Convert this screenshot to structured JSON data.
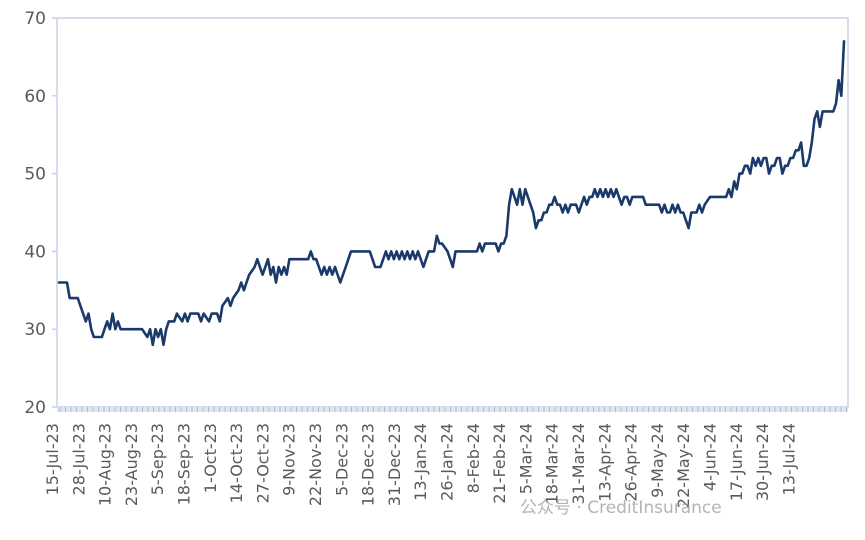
{
  "watermark": "公众号 · CreditInsurance",
  "chart_data": {
    "type": "line",
    "title": "",
    "xlabel": "",
    "ylabel": "",
    "ylim": [
      20,
      70
    ],
    "yticks": [
      "20",
      "30",
      "40",
      "50",
      "60",
      "70"
    ],
    "grid": false,
    "line_color": "#1b3a6b",
    "axis_color": "#c9d3e6",
    "x_tick_labels": [
      "15-Jul-23",
      "28-Jul-23",
      "10-Aug-23",
      "23-Aug-23",
      "5-Sep-23",
      "18-Sep-23",
      "1-Oct-23",
      "14-Oct-23",
      "27-Oct-23",
      "9-Nov-23",
      "22-Nov-23",
      "5-Dec-23",
      "18-Dec-23",
      "31-Dec-23",
      "13-Jan-24",
      "26-Jan-24",
      "8-Feb-24",
      "21-Feb-24",
      "5-Mar-24",
      "18-Mar-24",
      "31-Mar-24",
      "13-Apr-24",
      "26-Apr-24",
      "9-May-24",
      "22-May-24",
      "4-Jun-24",
      "17-Jun-24",
      "30-Jun-24",
      "13-Jul-24"
    ],
    "series": [
      {
        "values": [
          [
            "2023-07-15",
            36
          ],
          [
            "2023-07-18",
            36
          ],
          [
            "2023-07-19",
            34
          ],
          [
            "2023-07-22",
            34
          ],
          [
            "2023-07-23",
            33
          ],
          [
            "2023-07-24",
            32
          ],
          [
            "2023-07-25",
            31
          ],
          [
            "2023-07-26",
            32
          ],
          [
            "2023-07-27",
            30
          ],
          [
            "2023-07-28",
            29
          ],
          [
            "2023-07-31",
            29
          ],
          [
            "2023-08-01",
            30
          ],
          [
            "2023-08-02",
            31
          ],
          [
            "2023-08-03",
            30
          ],
          [
            "2023-08-04",
            32
          ],
          [
            "2023-08-05",
            30
          ],
          [
            "2023-08-06",
            31
          ],
          [
            "2023-08-07",
            30
          ],
          [
            "2023-08-10",
            30
          ],
          [
            "2023-08-15",
            30
          ],
          [
            "2023-08-17",
            29
          ],
          [
            "2023-08-18",
            30
          ],
          [
            "2023-08-19",
            28
          ],
          [
            "2023-08-20",
            30
          ],
          [
            "2023-08-21",
            29
          ],
          [
            "2023-08-22",
            30
          ],
          [
            "2023-08-23",
            28
          ],
          [
            "2023-08-24",
            30
          ],
          [
            "2023-08-25",
            31
          ],
          [
            "2023-08-27",
            31
          ],
          [
            "2023-08-28",
            32
          ],
          [
            "2023-08-30",
            31
          ],
          [
            "2023-08-31",
            32
          ],
          [
            "2023-09-01",
            31
          ],
          [
            "2023-09-02",
            32
          ],
          [
            "2023-09-05",
            32
          ],
          [
            "2023-09-06",
            31
          ],
          [
            "2023-09-07",
            32
          ],
          [
            "2023-09-09",
            31
          ],
          [
            "2023-09-10",
            32
          ],
          [
            "2023-09-12",
            32
          ],
          [
            "2023-09-13",
            31
          ],
          [
            "2023-09-14",
            33
          ],
          [
            "2023-09-16",
            34
          ],
          [
            "2023-09-17",
            33
          ],
          [
            "2023-09-18",
            34
          ],
          [
            "2023-09-20",
            35
          ],
          [
            "2023-09-21",
            36
          ],
          [
            "2023-09-22",
            35
          ],
          [
            "2023-09-23",
            36
          ],
          [
            "2023-09-24",
            37
          ],
          [
            "2023-09-26",
            38
          ],
          [
            "2023-09-27",
            39
          ],
          [
            "2023-09-28",
            38
          ],
          [
            "2023-09-29",
            37
          ],
          [
            "2023-09-30",
            38
          ],
          [
            "2023-10-01",
            39
          ],
          [
            "2023-10-02",
            37
          ],
          [
            "2023-10-03",
            38
          ],
          [
            "2023-10-04",
            36
          ],
          [
            "2023-10-05",
            38
          ],
          [
            "2023-10-06",
            37
          ],
          [
            "2023-10-07",
            38
          ],
          [
            "2023-10-08",
            37
          ],
          [
            "2023-10-09",
            39
          ],
          [
            "2023-10-11",
            39
          ],
          [
            "2023-10-13",
            39
          ],
          [
            "2023-10-14",
            39
          ],
          [
            "2023-10-16",
            39
          ],
          [
            "2023-10-17",
            40
          ],
          [
            "2023-10-18",
            39
          ],
          [
            "2023-10-19",
            39
          ],
          [
            "2023-10-20",
            38
          ],
          [
            "2023-10-21",
            37
          ],
          [
            "2023-10-22",
            38
          ],
          [
            "2023-10-23",
            37
          ],
          [
            "2023-10-24",
            38
          ],
          [
            "2023-10-25",
            37
          ],
          [
            "2023-10-26",
            38
          ],
          [
            "2023-10-27",
            37
          ],
          [
            "2023-10-28",
            36
          ],
          [
            "2023-10-29",
            37
          ],
          [
            "2023-10-30",
            38
          ],
          [
            "2023-11-01",
            40
          ],
          [
            "2023-11-03",
            40
          ],
          [
            "2023-11-05",
            40
          ],
          [
            "2023-11-07",
            40
          ],
          [
            "2023-11-08",
            40
          ],
          [
            "2023-11-09",
            39
          ],
          [
            "2023-11-10",
            38
          ],
          [
            "2023-11-12",
            38
          ],
          [
            "2023-11-13",
            39
          ],
          [
            "2023-11-14",
            40
          ],
          [
            "2023-11-15",
            39
          ],
          [
            "2023-11-16",
            40
          ],
          [
            "2023-11-17",
            39
          ],
          [
            "2023-11-18",
            40
          ],
          [
            "2023-11-19",
            39
          ],
          [
            "2023-11-20",
            40
          ],
          [
            "2023-11-21",
            39
          ],
          [
            "2023-11-22",
            40
          ],
          [
            "2023-11-23",
            39
          ],
          [
            "2023-11-24",
            40
          ],
          [
            "2023-11-25",
            39
          ],
          [
            "2023-11-26",
            40
          ],
          [
            "2023-11-27",
            39
          ],
          [
            "2023-11-28",
            38
          ],
          [
            "2023-11-29",
            39
          ],
          [
            "2023-11-30",
            40
          ],
          [
            "2023-12-02",
            40
          ],
          [
            "2023-12-03",
            42
          ],
          [
            "2023-12-04",
            41
          ],
          [
            "2023-12-05",
            41
          ],
          [
            "2023-12-07",
            40
          ],
          [
            "2023-12-08",
            39
          ],
          [
            "2023-12-09",
            38
          ],
          [
            "2023-12-10",
            40
          ],
          [
            "2023-12-12",
            40
          ],
          [
            "2023-12-14",
            40
          ],
          [
            "2023-12-16",
            40
          ],
          [
            "2023-12-18",
            40
          ],
          [
            "2023-12-19",
            41
          ],
          [
            "2023-12-20",
            40
          ],
          [
            "2023-12-21",
            41
          ],
          [
            "2023-12-23",
            41
          ],
          [
            "2023-12-25",
            41
          ],
          [
            "2023-12-26",
            40
          ],
          [
            "2023-12-27",
            41
          ],
          [
            "2023-12-28",
            41
          ],
          [
            "2023-12-29",
            42
          ],
          [
            "2023-12-30",
            46
          ],
          [
            "2023-12-31",
            48
          ],
          [
            "2024-01-01",
            47
          ],
          [
            "2024-01-02",
            46
          ],
          [
            "2024-01-03",
            48
          ],
          [
            "2024-01-04",
            46
          ],
          [
            "2024-01-05",
            48
          ],
          [
            "2024-01-06",
            47
          ],
          [
            "2024-01-07",
            46
          ],
          [
            "2024-01-08",
            45
          ],
          [
            "2024-01-09",
            43
          ],
          [
            "2024-01-10",
            44
          ],
          [
            "2024-01-11",
            44
          ],
          [
            "2024-01-12",
            45
          ],
          [
            "2024-01-13",
            45
          ],
          [
            "2024-01-14",
            46
          ],
          [
            "2024-01-15",
            46
          ],
          [
            "2024-01-16",
            47
          ],
          [
            "2024-01-17",
            46
          ],
          [
            "2024-01-18",
            46
          ],
          [
            "2024-01-19",
            45
          ],
          [
            "2024-01-20",
            46
          ],
          [
            "2024-01-21",
            45
          ],
          [
            "2024-01-22",
            46
          ],
          [
            "2024-01-24",
            46
          ],
          [
            "2024-01-25",
            45
          ],
          [
            "2024-01-26",
            46
          ],
          [
            "2024-01-27",
            47
          ],
          [
            "2024-01-28",
            46
          ],
          [
            "2024-01-29",
            47
          ],
          [
            "2024-01-30",
            47
          ],
          [
            "2024-01-31",
            48
          ],
          [
            "2024-02-01",
            47
          ],
          [
            "2024-02-02",
            48
          ],
          [
            "2024-02-03",
            47
          ],
          [
            "2024-02-04",
            48
          ],
          [
            "2024-02-05",
            47
          ],
          [
            "2024-02-06",
            48
          ],
          [
            "2024-02-07",
            47
          ],
          [
            "2024-02-08",
            48
          ],
          [
            "2024-02-09",
            47
          ],
          [
            "2024-02-10",
            46
          ],
          [
            "2024-02-11",
            47
          ],
          [
            "2024-02-12",
            47
          ],
          [
            "2024-02-13",
            46
          ],
          [
            "2024-02-14",
            47
          ],
          [
            "2024-02-16",
            47
          ],
          [
            "2024-02-18",
            47
          ],
          [
            "2024-02-19",
            46
          ],
          [
            "2024-02-20",
            46
          ],
          [
            "2024-02-22",
            46
          ],
          [
            "2024-02-24",
            46
          ],
          [
            "2024-02-25",
            45
          ],
          [
            "2024-02-26",
            46
          ],
          [
            "2024-02-27",
            45
          ],
          [
            "2024-02-28",
            45
          ],
          [
            "2024-02-29",
            46
          ],
          [
            "2024-03-01",
            45
          ],
          [
            "2024-03-02",
            46
          ],
          [
            "2024-03-03",
            45
          ],
          [
            "2024-03-04",
            45
          ],
          [
            "2024-03-05",
            44
          ],
          [
            "2024-03-06",
            43
          ],
          [
            "2024-03-07",
            45
          ],
          [
            "2024-03-09",
            45
          ],
          [
            "2024-03-10",
            46
          ],
          [
            "2024-03-11",
            45
          ],
          [
            "2024-03-12",
            46
          ],
          [
            "2024-03-14",
            47
          ],
          [
            "2024-03-16",
            47
          ],
          [
            "2024-03-18",
            47
          ],
          [
            "2024-03-20",
            47
          ],
          [
            "2024-03-21",
            48
          ],
          [
            "2024-03-22",
            47
          ],
          [
            "2024-03-23",
            49
          ],
          [
            "2024-03-24",
            48
          ],
          [
            "2024-03-25",
            50
          ],
          [
            "2024-03-26",
            50
          ],
          [
            "2024-03-27",
            51
          ],
          [
            "2024-03-28",
            51
          ],
          [
            "2024-03-29",
            50
          ],
          [
            "2024-03-30",
            52
          ],
          [
            "2024-03-31",
            51
          ],
          [
            "2024-04-01",
            52
          ],
          [
            "2024-04-02",
            51
          ],
          [
            "2024-04-03",
            52
          ],
          [
            "2024-04-04",
            52
          ],
          [
            "2024-04-05",
            50
          ],
          [
            "2024-04-06",
            51
          ],
          [
            "2024-04-07",
            51
          ],
          [
            "2024-04-08",
            52
          ],
          [
            "2024-04-09",
            52
          ],
          [
            "2024-04-10",
            50
          ],
          [
            "2024-04-11",
            51
          ],
          [
            "2024-04-12",
            51
          ],
          [
            "2024-04-13",
            52
          ],
          [
            "2024-04-14",
            52
          ],
          [
            "2024-04-15",
            53
          ],
          [
            "2024-04-16",
            53
          ],
          [
            "2024-04-17",
            54
          ],
          [
            "2024-04-18",
            51
          ],
          [
            "2024-04-19",
            51
          ],
          [
            "2024-04-20",
            52
          ],
          [
            "2024-04-21",
            54
          ],
          [
            "2024-04-22",
            57
          ],
          [
            "2024-04-23",
            58
          ],
          [
            "2024-04-24",
            56
          ],
          [
            "2024-04-25",
            58
          ],
          [
            "2024-04-27",
            58
          ],
          [
            "2024-04-29",
            58
          ],
          [
            "2024-04-30",
            59
          ],
          [
            "2024-05-01",
            62
          ],
          [
            "2024-05-02",
            60
          ],
          [
            "2024-05-03",
            67
          ]
        ]
      }
    ]
  }
}
